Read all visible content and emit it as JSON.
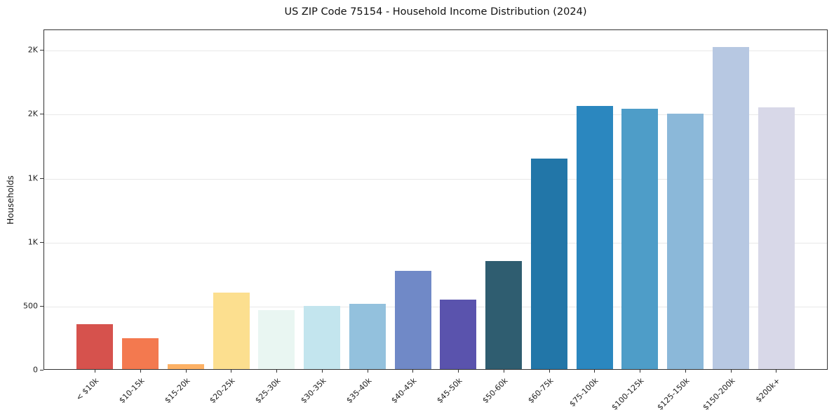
{
  "chart_data": {
    "type": "bar",
    "title": "US ZIP Code 75154 - Household Income Distribution (2024)",
    "xlabel": "",
    "ylabel": "Households",
    "categories": [
      "< $10k",
      "$10-15k",
      "$15-20k",
      "$20-25k",
      "$25-30k",
      "$30-35k",
      "$35-40k",
      "$40-45k",
      "$45-50k",
      "$50-60k",
      "$60-75k",
      "$75-100k",
      "$100-125k",
      "$125-150k",
      "$150-200k",
      "$200k+"
    ],
    "values": [
      350,
      240,
      40,
      600,
      460,
      495,
      515,
      770,
      545,
      850,
      1655,
      2065,
      2045,
      2005,
      2530,
      2055
    ],
    "colors": [
      "#d6524d",
      "#f3794f",
      "#fdb165",
      "#fcdf8f",
      "#e9f6f2",
      "#c3e5ee",
      "#93c1dd",
      "#7089c7",
      "#5a53ad",
      "#2f5d70",
      "#2276a8",
      "#2b87bf",
      "#4e9dc8",
      "#8bb8d9",
      "#b7c8e2",
      "#d8d8e8"
    ],
    "ylim": [
      0,
      2660
    ],
    "yticks": [
      {
        "value": 0,
        "label": "0"
      },
      {
        "value": 500,
        "label": "500"
      },
      {
        "value": 1000,
        "label": "1K"
      },
      {
        "value": 1500,
        "label": "1K"
      },
      {
        "value": 2000,
        "label": "2K"
      },
      {
        "value": 2500,
        "label": "2K"
      }
    ],
    "grid": true,
    "legend": "none"
  }
}
